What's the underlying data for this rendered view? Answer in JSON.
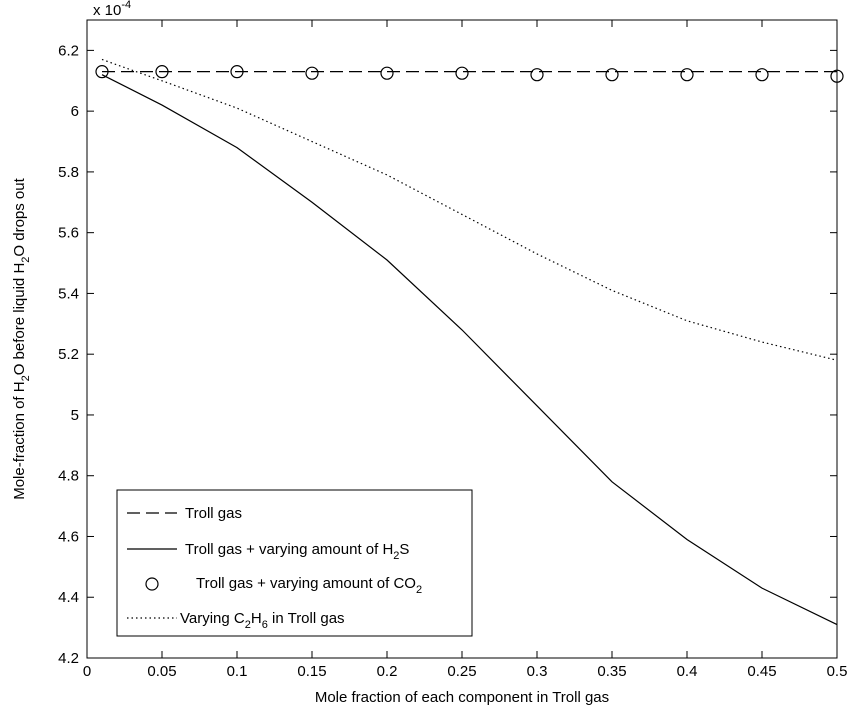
{
  "chart_data": {
    "type": "line",
    "xlabel": "Mole fraction of each component in Troll gas",
    "ylabel": {
      "pre": "Mole-fraction of H",
      "sub1": "2",
      "mid": "O before liquid H",
      "sub2": "2",
      "post": "O drops out"
    },
    "exponent": {
      "base": "x 10",
      "power": "-4"
    },
    "xlim": [
      0,
      0.5
    ],
    "ylim": [
      4.2,
      6.3
    ],
    "xticks": [
      "0",
      "0.05",
      "0.1",
      "0.15",
      "0.2",
      "0.25",
      "0.3",
      "0.35",
      "0.4",
      "0.45",
      "0.5"
    ],
    "yticks": [
      "4.2",
      "4.4",
      "4.6",
      "4.8",
      "5",
      "5.2",
      "5.4",
      "5.6",
      "5.8",
      "6",
      "6.2"
    ],
    "legend_position": "bottom-left",
    "series": [
      {
        "name": "Troll gas",
        "style": "dashed",
        "x": [
          0.01,
          0.5
        ],
        "y": [
          6.13,
          6.13
        ],
        "color": "#000000"
      },
      {
        "name": {
          "pre": "Troll gas + varying amount of H",
          "sub": "2",
          "post": "S"
        },
        "style": "solid",
        "x": [
          0.01,
          0.05,
          0.1,
          0.15,
          0.2,
          0.25,
          0.3,
          0.35,
          0.4,
          0.45,
          0.5
        ],
        "y": [
          6.12,
          6.02,
          5.88,
          5.7,
          5.51,
          5.28,
          5.03,
          4.78,
          4.59,
          4.43,
          4.31
        ],
        "color": "#000000"
      },
      {
        "name": {
          "pre": "Troll gas + varying amount of CO",
          "sub": "2",
          "post": ""
        },
        "style": "markers",
        "x": [
          0.01,
          0.05,
          0.1,
          0.15,
          0.2,
          0.25,
          0.3,
          0.35,
          0.4,
          0.45,
          0.5
        ],
        "y": [
          6.13,
          6.13,
          6.13,
          6.125,
          6.125,
          6.125,
          6.12,
          6.12,
          6.12,
          6.12,
          6.115
        ],
        "color": "#000000"
      },
      {
        "name": {
          "pre": "Varying C",
          "sub": "2",
          "mid": "H",
          "sub2": "6",
          "post": " in Troll gas"
        },
        "style": "dotted",
        "x": [
          0.01,
          0.05,
          0.1,
          0.15,
          0.2,
          0.25,
          0.3,
          0.35,
          0.4,
          0.45,
          0.5
        ],
        "y": [
          6.17,
          6.1,
          6.01,
          5.9,
          5.79,
          5.66,
          5.53,
          5.41,
          5.31,
          5.24,
          5.18
        ],
        "color": "#000000"
      }
    ]
  }
}
